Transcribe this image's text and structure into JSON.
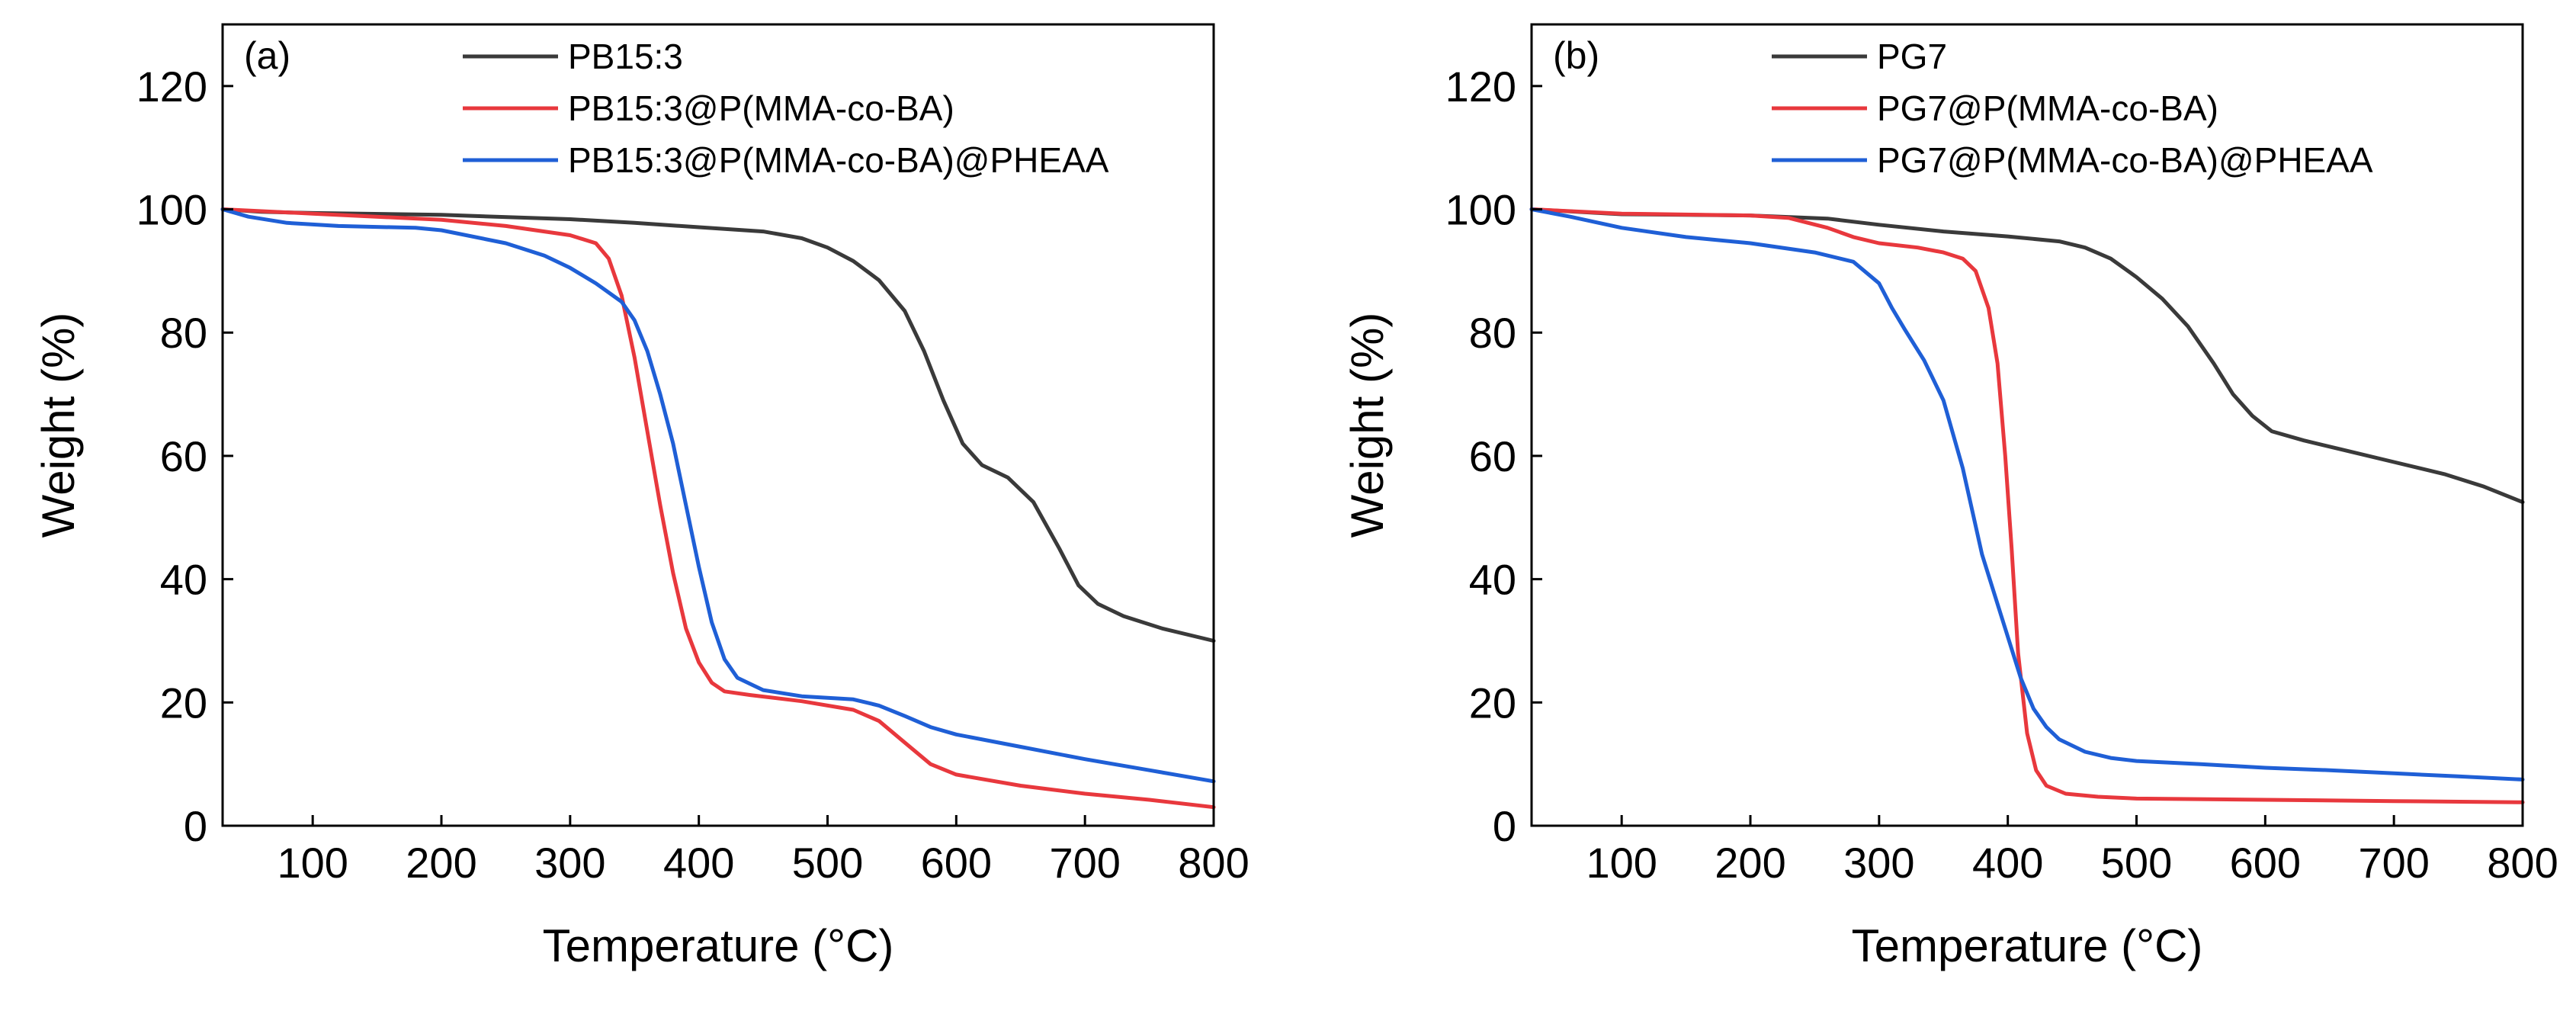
{
  "figure": {
    "panels": [
      "(a)",
      "(b)"
    ]
  },
  "chart_data": [
    {
      "type": "line",
      "panel_label": "(a)",
      "title": "",
      "xlabel": "Temperature (°C)",
      "ylabel": "Weight (%)",
      "xlim": [
        30,
        800
      ],
      "ylim": [
        0,
        130
      ],
      "xticks": [
        100,
        200,
        300,
        400,
        500,
        600,
        700,
        800
      ],
      "yticks": [
        0,
        20,
        40,
        60,
        80,
        100,
        120
      ],
      "grid": false,
      "legend_position": "top-center",
      "series": [
        {
          "name": "PB15:3",
          "color": "#3a3a3a",
          "points": [
            [
              30,
              100
            ],
            [
              60,
              99.6
            ],
            [
              100,
              99.4
            ],
            [
              200,
              99.1
            ],
            [
              300,
              98.4
            ],
            [
              350,
              97.8
            ],
            [
              400,
              97.1
            ],
            [
              450,
              96.4
            ],
            [
              480,
              95.3
            ],
            [
              500,
              93.8
            ],
            [
              520,
              91.6
            ],
            [
              540,
              88.5
            ],
            [
              560,
              83.5
            ],
            [
              575,
              77
            ],
            [
              590,
              69
            ],
            [
              605,
              62
            ],
            [
              620,
              58.5
            ],
            [
              640,
              56.5
            ],
            [
              660,
              52.5
            ],
            [
              680,
              45
            ],
            [
              695,
              39
            ],
            [
              710,
              36
            ],
            [
              730,
              34
            ],
            [
              760,
              32
            ],
            [
              800,
              30
            ]
          ]
        },
        {
          "name": "PB15:3@P(MMA-co-BA)",
          "color": "#e8383d",
          "points": [
            [
              30,
              100
            ],
            [
              100,
              99.3
            ],
            [
              200,
              98.3
            ],
            [
              250,
              97.3
            ],
            [
              300,
              95.8
            ],
            [
              320,
              94.5
            ],
            [
              330,
              92
            ],
            [
              340,
              86
            ],
            [
              350,
              76
            ],
            [
              360,
              64
            ],
            [
              370,
              52
            ],
            [
              380,
              41
            ],
            [
              390,
              32
            ],
            [
              400,
              26.5
            ],
            [
              410,
              23.2
            ],
            [
              420,
              21.8
            ],
            [
              440,
              21.2
            ],
            [
              480,
              20.2
            ],
            [
              520,
              18.8
            ],
            [
              540,
              17
            ],
            [
              560,
              13.5
            ],
            [
              580,
              10
            ],
            [
              600,
              8.3
            ],
            [
              650,
              6.5
            ],
            [
              700,
              5.2
            ],
            [
              750,
              4.2
            ],
            [
              800,
              3
            ]
          ]
        },
        {
          "name": "PB15:3@P(MMA-co-BA)@PHEAA",
          "color": "#1f5fd6",
          "points": [
            [
              30,
              100
            ],
            [
              50,
              98.8
            ],
            [
              80,
              97.8
            ],
            [
              120,
              97.3
            ],
            [
              180,
              97
            ],
            [
              200,
              96.6
            ],
            [
              250,
              94.5
            ],
            [
              280,
              92.5
            ],
            [
              300,
              90.5
            ],
            [
              320,
              88
            ],
            [
              340,
              85
            ],
            [
              350,
              82
            ],
            [
              360,
              77
            ],
            [
              370,
              70
            ],
            [
              380,
              62
            ],
            [
              390,
              52
            ],
            [
              400,
              42
            ],
            [
              410,
              33
            ],
            [
              420,
              27
            ],
            [
              430,
              24
            ],
            [
              450,
              22
            ],
            [
              480,
              21
            ],
            [
              520,
              20.5
            ],
            [
              540,
              19.5
            ],
            [
              560,
              17.8
            ],
            [
              580,
              16
            ],
            [
              600,
              14.8
            ],
            [
              650,
              12.8
            ],
            [
              700,
              10.8
            ],
            [
              750,
              9
            ],
            [
              800,
              7.2
            ]
          ]
        }
      ]
    },
    {
      "type": "line",
      "panel_label": "(b)",
      "title": "",
      "xlabel": "Temperature (°C)",
      "ylabel": "Weight (%)",
      "xlim": [
        30,
        800
      ],
      "ylim": [
        0,
        130
      ],
      "xticks": [
        100,
        200,
        300,
        400,
        500,
        600,
        700,
        800
      ],
      "yticks": [
        0,
        20,
        40,
        60,
        80,
        100,
        120
      ],
      "grid": false,
      "legend_position": "top-center",
      "series": [
        {
          "name": "PG7",
          "color": "#3a3a3a",
          "points": [
            [
              30,
              100
            ],
            [
              100,
              99.2
            ],
            [
              200,
              99
            ],
            [
              260,
              98.5
            ],
            [
              300,
              97.5
            ],
            [
              350,
              96.4
            ],
            [
              400,
              95.6
            ],
            [
              440,
              94.8
            ],
            [
              460,
              93.8
            ],
            [
              480,
              92
            ],
            [
              500,
              89
            ],
            [
              520,
              85.5
            ],
            [
              540,
              81
            ],
            [
              560,
              75
            ],
            [
              575,
              70
            ],
            [
              590,
              66.5
            ],
            [
              605,
              64
            ],
            [
              630,
              62.5
            ],
            [
              660,
              61
            ],
            [
              700,
              59
            ],
            [
              740,
              57
            ],
            [
              770,
              55
            ],
            [
              800,
              52.5
            ]
          ]
        },
        {
          "name": "PG7@P(MMA-co-BA)",
          "color": "#e8383d",
          "points": [
            [
              30,
              100
            ],
            [
              100,
              99.3
            ],
            [
              200,
              99
            ],
            [
              230,
              98.6
            ],
            [
              260,
              97
            ],
            [
              280,
              95.5
            ],
            [
              300,
              94.5
            ],
            [
              330,
              93.8
            ],
            [
              350,
              93
            ],
            [
              365,
              92
            ],
            [
              375,
              90
            ],
            [
              385,
              84
            ],
            [
              392,
              75
            ],
            [
              398,
              60
            ],
            [
              403,
              45
            ],
            [
              408,
              28
            ],
            [
              415,
              15
            ],
            [
              422,
              9
            ],
            [
              430,
              6.5
            ],
            [
              445,
              5.2
            ],
            [
              470,
              4.7
            ],
            [
              500,
              4.4
            ],
            [
              600,
              4.2
            ],
            [
              700,
              4
            ],
            [
              800,
              3.8
            ]
          ]
        },
        {
          "name": "PG7@P(MMA-co-BA)@PHEAA",
          "color": "#1f5fd6",
          "points": [
            [
              30,
              100
            ],
            [
              60,
              98.8
            ],
            [
              100,
              97
            ],
            [
              150,
              95.5
            ],
            [
              200,
              94.5
            ],
            [
              250,
              93
            ],
            [
              280,
              91.5
            ],
            [
              300,
              88
            ],
            [
              310,
              84
            ],
            [
              320,
              80.5
            ],
            [
              335,
              75.5
            ],
            [
              350,
              69
            ],
            [
              365,
              58
            ],
            [
              380,
              44
            ],
            [
              395,
              34
            ],
            [
              410,
              24
            ],
            [
              420,
              19
            ],
            [
              430,
              16
            ],
            [
              440,
              14
            ],
            [
              460,
              12
            ],
            [
              480,
              11
            ],
            [
              500,
              10.5
            ],
            [
              550,
              10
            ],
            [
              600,
              9.4
            ],
            [
              650,
              9
            ],
            [
              700,
              8.5
            ],
            [
              750,
              8
            ],
            [
              800,
              7.5
            ]
          ]
        }
      ]
    }
  ]
}
